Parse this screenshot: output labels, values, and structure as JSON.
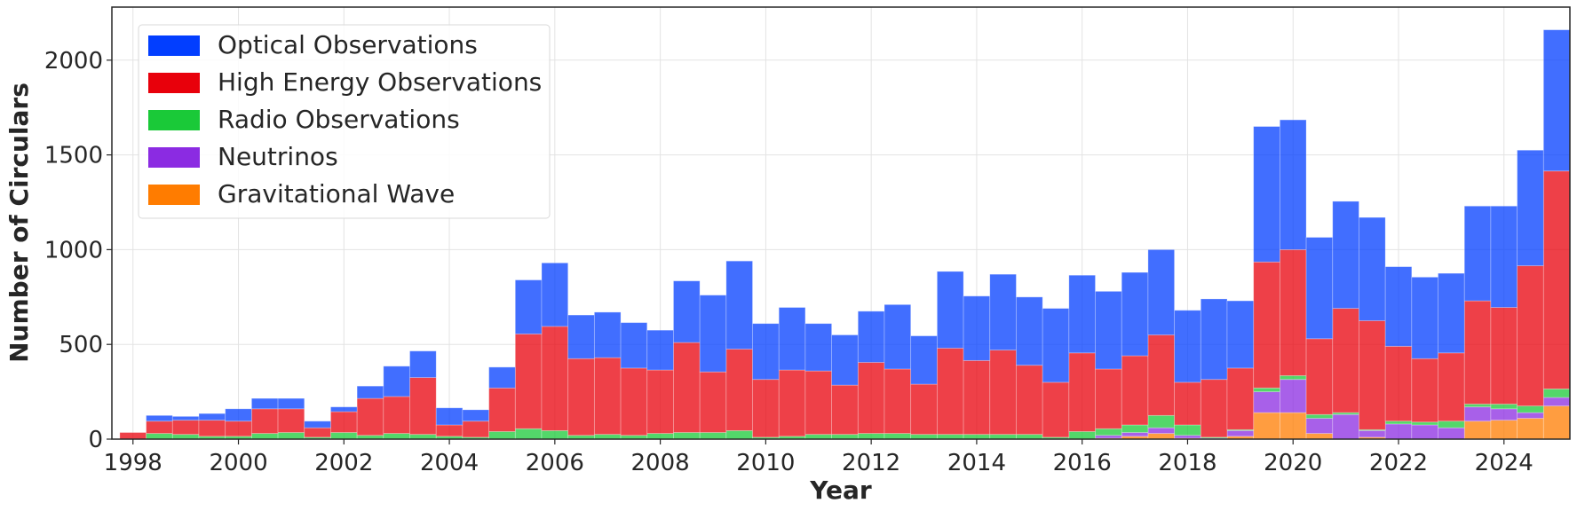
{
  "chart_data": {
    "type": "bar",
    "stacked": true,
    "xlabel": "Year",
    "ylabel": "Number of Circulars",
    "bin_width_years": 0.5,
    "xlim": [
      1997.6,
      2025.25
    ],
    "ylim": [
      0,
      2280
    ],
    "x_ticks": [
      1998,
      2000,
      2002,
      2004,
      2006,
      2008,
      2010,
      2012,
      2014,
      2016,
      2018,
      2020,
      2022,
      2024
    ],
    "x_tick_labels": [
      "1998",
      "2000",
      "2002",
      "2004",
      "2006",
      "2008",
      "2010",
      "2012",
      "2014",
      "2016",
      "2018",
      "2020",
      "2022",
      "2024"
    ],
    "y_ticks": [
      0,
      500,
      1000,
      1500,
      2000
    ],
    "y_tick_labels": [
      "0",
      "500",
      "1000",
      "1500",
      "2000"
    ],
    "grid": true,
    "legend_position": "top-left",
    "bin_starts": [
      1997.75,
      1998.25,
      1998.75,
      1999.25,
      1999.75,
      2000.25,
      2000.75,
      2001.25,
      2001.75,
      2002.25,
      2002.75,
      2003.25,
      2003.75,
      2004.25,
      2004.75,
      2005.25,
      2005.75,
      2006.25,
      2006.75,
      2007.25,
      2007.75,
      2008.25,
      2008.75,
      2009.25,
      2009.75,
      2010.25,
      2010.75,
      2011.25,
      2011.75,
      2012.25,
      2012.75,
      2013.25,
      2013.75,
      2014.25,
      2014.75,
      2015.25,
      2015.75,
      2016.25,
      2016.75,
      2017.25,
      2017.75,
      2018.25,
      2018.75,
      2019.25,
      2019.75,
      2020.25,
      2020.75,
      2021.25,
      2021.75,
      2022.25,
      2022.75,
      2023.25,
      2023.75,
      2024.25,
      2024.75
    ],
    "series": [
      {
        "name": "Gravitational Wave",
        "color": "#ff7c00",
        "values": [
          0,
          0,
          0,
          0,
          0,
          0,
          0,
          0,
          0,
          0,
          0,
          0,
          0,
          0,
          0,
          0,
          0,
          0,
          0,
          0,
          0,
          0,
          0,
          0,
          0,
          0,
          0,
          0,
          0,
          0,
          0,
          0,
          0,
          0,
          0,
          0,
          0,
          5,
          15,
          30,
          5,
          0,
          15,
          140,
          140,
          30,
          0,
          10,
          0,
          0,
          0,
          95,
          100,
          110,
          175
        ]
      },
      {
        "name": "Neutrinos",
        "color": "#8b2be2",
        "values": [
          0,
          0,
          0,
          0,
          0,
          0,
          0,
          0,
          0,
          0,
          0,
          0,
          0,
          0,
          0,
          0,
          0,
          0,
          0,
          0,
          0,
          0,
          0,
          0,
          0,
          0,
          0,
          0,
          0,
          0,
          0,
          0,
          0,
          0,
          0,
          0,
          0,
          15,
          20,
          30,
          15,
          5,
          30,
          110,
          175,
          80,
          130,
          35,
          80,
          75,
          60,
          75,
          60,
          30,
          45
        ]
      },
      {
        "name": "Radio Observations",
        "color": "#1ac938",
        "values": [
          0,
          30,
          25,
          15,
          15,
          30,
          35,
          10,
          35,
          20,
          30,
          25,
          15,
          10,
          40,
          55,
          45,
          20,
          25,
          20,
          30,
          35,
          35,
          45,
          10,
          15,
          25,
          25,
          30,
          30,
          25,
          25,
          25,
          25,
          25,
          10,
          40,
          35,
          40,
          65,
          55,
          5,
          5,
          20,
          20,
          20,
          10,
          5,
          15,
          15,
          35,
          15,
          25,
          35,
          45
        ]
      },
      {
        "name": "High Energy Observations",
        "color": "#e8000b",
        "values": [
          35,
          65,
          75,
          85,
          80,
          130,
          125,
          50,
          110,
          195,
          195,
          300,
          60,
          85,
          230,
          500,
          550,
          405,
          405,
          355,
          335,
          475,
          320,
          430,
          305,
          350,
          335,
          260,
          375,
          340,
          265,
          455,
          390,
          445,
          365,
          290,
          415,
          315,
          365,
          425,
          225,
          305,
          325,
          665,
          665,
          400,
          550,
          575,
          395,
          335,
          360,
          545,
          510,
          740,
          1150
        ]
      },
      {
        "name": "Optical Observations",
        "color": "#023eff",
        "values": [
          0,
          30,
          20,
          35,
          65,
          55,
          55,
          35,
          25,
          65,
          160,
          140,
          90,
          60,
          110,
          285,
          335,
          230,
          240,
          240,
          210,
          325,
          405,
          465,
          295,
          330,
          250,
          265,
          270,
          340,
          255,
          405,
          340,
          400,
          360,
          390,
          410,
          410,
          440,
          450,
          380,
          425,
          355,
          715,
          685,
          535,
          565,
          545,
          420,
          430,
          420,
          500,
          535,
          610,
          745
        ]
      }
    ]
  }
}
